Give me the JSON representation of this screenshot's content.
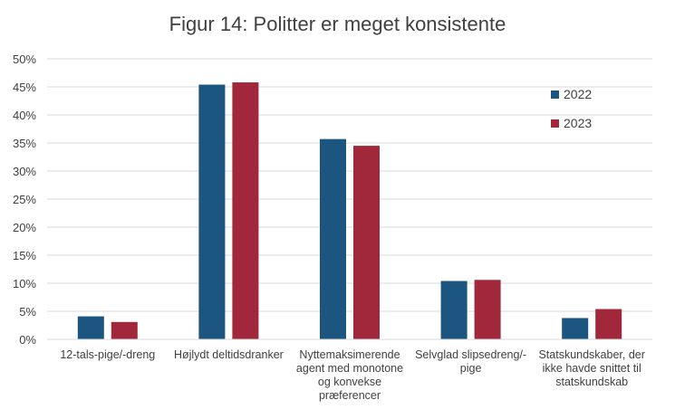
{
  "chart_data": {
    "type": "bar",
    "title": "Figur 14: Politter er meget konsistente",
    "categories": [
      "12-tals-pige/-dreng",
      "Højlydt deltidsdranker",
      "Nyttemaksimerende\nagent med monotone\nog konvekse\npræferencer",
      "Selvglad slipsedreng/-\npige",
      "Statskundskaber, der\nikke havde snittet til\nstatskundskab"
    ],
    "series": [
      {
        "name": "2022",
        "color": "#1b5580",
        "values": [
          4.1,
          45.4,
          35.7,
          10.4,
          3.8
        ]
      },
      {
        "name": "2023",
        "color": "#a0283a",
        "values": [
          3.1,
          45.8,
          34.5,
          10.6,
          5.4
        ]
      }
    ],
    "ylim": [
      0,
      50
    ],
    "yticks": [
      "0%",
      "5%",
      "10%",
      "15%",
      "20%",
      "25%",
      "30%",
      "35%",
      "40%",
      "45%",
      "50%"
    ],
    "grid": true,
    "legend_position": "top-right"
  }
}
